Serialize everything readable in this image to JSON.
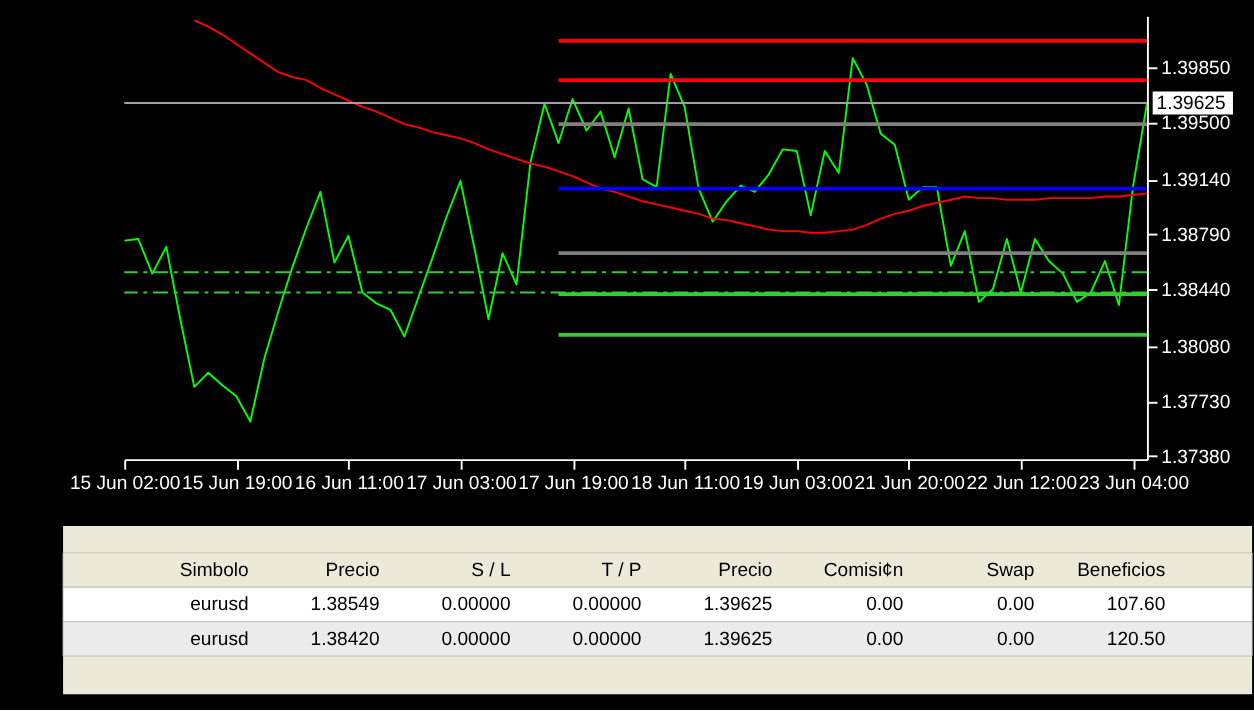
{
  "chart_data": {
    "type": "line",
    "categories": [
      "15 Jun 02:00",
      null,
      null,
      null,
      null,
      null,
      null,
      null,
      "15 Jun 19:00",
      null,
      null,
      null,
      null,
      null,
      null,
      null,
      "16 Jun 11:00",
      null,
      null,
      null,
      null,
      null,
      null,
      null,
      "17 Jun 03:00",
      null,
      null,
      null,
      null,
      null,
      null,
      null,
      "17 Jun 19:00",
      null,
      null,
      null,
      null,
      null,
      null,
      null,
      "18 Jun 11:00",
      null,
      null,
      null,
      null,
      null,
      null,
      null,
      "19 Jun 03:00",
      null,
      null,
      null,
      null,
      null,
      null,
      null,
      "21 Jun 20:00",
      null,
      null,
      null,
      null,
      null,
      null,
      null,
      "22 Jun 12:00",
      null,
      null,
      null,
      null,
      null,
      null,
      null,
      "23 Jun 04:00",
      null
    ],
    "ylim": [
      1.3736,
      1.4018
    ],
    "yticks": [
      {
        "value": 1.3738,
        "label": "1.37380"
      },
      {
        "value": 1.3773,
        "label": "1.37730"
      },
      {
        "value": 1.3808,
        "label": "1.38080"
      },
      {
        "value": 1.3844,
        "label": "1.38440"
      },
      {
        "value": 1.3879,
        "label": "1.38790"
      },
      {
        "value": 1.3914,
        "label": "1.39140"
      },
      {
        "value": 1.395,
        "label": "1.39500"
      },
      {
        "value": 1.3985,
        "label": "1.39850"
      }
    ],
    "grid": false,
    "series": [
      {
        "color": "#00ff00",
        "values": [
          1.3875,
          1.3876,
          1.3854,
          1.3871,
          1.3825,
          1.3782,
          1.3791,
          1.3783,
          1.3776,
          1.376,
          1.38,
          1.383,
          1.3858,
          1.3883,
          1.3906,
          1.3861,
          1.3878,
          1.3842,
          1.3835,
          1.3831,
          1.3814,
          1.3839,
          1.3864,
          1.389,
          1.3913,
          1.387,
          1.3825,
          1.3867,
          1.3847,
          1.3925,
          1.3962,
          1.3937,
          1.3965,
          1.3945,
          1.3957,
          1.3928,
          1.3959,
          1.3914,
          1.3909,
          1.3981,
          1.396,
          1.3908,
          1.3887,
          1.39,
          1.391,
          1.3906,
          1.3917,
          1.3933,
          1.3932,
          1.3891,
          1.3932,
          1.3918,
          1.3991,
          1.3974,
          1.3943,
          1.3936,
          1.3901,
          1.3909,
          1.3909,
          1.3859,
          1.3881,
          1.3836,
          1.3844,
          1.3876,
          1.3842,
          1.3876,
          1.3862,
          1.3854,
          1.3836,
          1.3842,
          1.3862,
          1.3834,
          1.3909,
          1.3962
        ]
      },
      {
        "color": "#ff0000",
        "values": [
          null,
          null,
          null,
          null,
          null,
          1.4015,
          1.4011,
          1.4006,
          1.4,
          1.3994,
          1.3988,
          1.3982,
          1.3979,
          1.3977,
          1.3972,
          1.3968,
          1.3964,
          1.396,
          1.3957,
          1.3953,
          1.3949,
          1.3947,
          1.3944,
          1.3942,
          1.394,
          1.3937,
          1.3933,
          1.393,
          1.3927,
          1.3924,
          1.3922,
          1.3919,
          1.3916,
          1.3912,
          1.3908,
          1.3906,
          1.3903,
          1.39,
          1.3898,
          1.3896,
          1.3894,
          1.3892,
          1.3889,
          1.3888,
          1.3886,
          1.3884,
          1.3882,
          1.3881,
          1.3881,
          1.388,
          1.388,
          1.3881,
          1.3882,
          1.3885,
          1.3889,
          1.3892,
          1.3894,
          1.3897,
          1.3899,
          1.3901,
          1.3903,
          1.3902,
          1.3902,
          1.3901,
          1.3901,
          1.3901,
          1.3902,
          1.3902,
          1.3902,
          1.3902,
          1.3903,
          1.3903,
          1.3904,
          1.3905
        ]
      },
      {
        "color": "#ff0000",
        "values": [
          null,
          null,
          null,
          null,
          null,
          null,
          null,
          null,
          null,
          null,
          null,
          null,
          null,
          null,
          null,
          null,
          null,
          null,
          null,
          null,
          null,
          null,
          null,
          null,
          null,
          null,
          null,
          null,
          null,
          null,
          null,
          1.4002,
          1.4002,
          1.4002,
          1.4002,
          1.4002,
          1.4002,
          1.4002,
          1.4002,
          1.4002,
          1.4002,
          1.4002,
          1.4002,
          1.4002,
          1.4002,
          1.4002,
          1.4002,
          1.4002,
          1.4002,
          1.4002,
          1.4002,
          1.4002,
          1.4002,
          1.4002,
          1.4002,
          1.4002,
          1.4002,
          1.4002,
          1.4002,
          1.4002,
          1.4002,
          1.4002,
          1.4002,
          1.4002,
          1.4002,
          1.4002,
          1.4002,
          1.4002,
          1.4002,
          1.4002,
          1.4002,
          1.4002,
          1.4002,
          1.4002
        ]
      },
      {
        "color": "#ff0000",
        "values": [
          null,
          null,
          null,
          null,
          null,
          null,
          null,
          null,
          null,
          null,
          null,
          null,
          null,
          null,
          null,
          null,
          null,
          null,
          null,
          null,
          null,
          null,
          null,
          null,
          null,
          null,
          null,
          null,
          null,
          null,
          null,
          1.3977,
          1.3977,
          1.3977,
          1.3977,
          1.3977,
          1.3977,
          1.3977,
          1.3977,
          1.3977,
          1.3977,
          1.3977,
          1.3977,
          1.3977,
          1.3977,
          1.3977,
          1.3977,
          1.3977,
          1.3977,
          1.3977,
          1.3977,
          1.3977,
          1.3977,
          1.3977,
          1.3977,
          1.3977,
          1.3977,
          1.3977,
          1.3977,
          1.3977,
          1.3977,
          1.3977,
          1.3977,
          1.3977,
          1.3977,
          1.3977,
          1.3977,
          1.3977,
          1.3977,
          1.3977,
          1.3977,
          1.3977,
          1.3977,
          1.3977
        ]
      },
      {
        "color": "#808080",
        "values": [
          null,
          null,
          null,
          null,
          null,
          null,
          null,
          null,
          null,
          null,
          null,
          null,
          null,
          null,
          null,
          null,
          null,
          null,
          null,
          null,
          null,
          null,
          null,
          null,
          null,
          null,
          null,
          null,
          null,
          null,
          null,
          1.3949,
          1.3949,
          1.3949,
          1.3949,
          1.3949,
          1.3949,
          1.3949,
          1.3949,
          1.3949,
          1.3949,
          1.3949,
          1.3949,
          1.3949,
          1.3949,
          1.3949,
          1.3949,
          1.3949,
          1.3949,
          1.3949,
          1.3949,
          1.3949,
          1.3949,
          1.3949,
          1.3949,
          1.3949,
          1.3949,
          1.3949,
          1.3949,
          1.3949,
          1.3949,
          1.3949,
          1.3949,
          1.3949,
          1.3949,
          1.3949,
          1.3949,
          1.3949,
          1.3949,
          1.3949,
          1.3949,
          1.3949,
          1.3949,
          1.3949
        ]
      },
      {
        "color": "#0000ff",
        "values": [
          null,
          null,
          null,
          null,
          null,
          null,
          null,
          null,
          null,
          null,
          null,
          null,
          null,
          null,
          null,
          null,
          null,
          null,
          null,
          null,
          null,
          null,
          null,
          null,
          null,
          null,
          null,
          null,
          null,
          null,
          null,
          1.3908,
          1.3908,
          1.3908,
          1.3908,
          1.3908,
          1.3908,
          1.3908,
          1.3908,
          1.3908,
          1.3908,
          1.3908,
          1.3908,
          1.3908,
          1.3908,
          1.3908,
          1.3908,
          1.3908,
          1.3908,
          1.3908,
          1.3908,
          1.3908,
          1.3908,
          1.3908,
          1.3908,
          1.3908,
          1.3908,
          1.3908,
          1.3908,
          1.3908,
          1.3908,
          1.3908,
          1.3908,
          1.3908,
          1.3908,
          1.3908,
          1.3908,
          1.3908,
          1.3908,
          1.3908,
          1.3908,
          1.3908,
          1.3908,
          1.3908
        ]
      },
      {
        "color": "#808080",
        "values": [
          null,
          null,
          null,
          null,
          null,
          null,
          null,
          null,
          null,
          null,
          null,
          null,
          null,
          null,
          null,
          null,
          null,
          null,
          null,
          null,
          null,
          null,
          null,
          null,
          null,
          null,
          null,
          null,
          null,
          null,
          null,
          1.3867,
          1.3867,
          1.3867,
          1.3867,
          1.3867,
          1.3867,
          1.3867,
          1.3867,
          1.3867,
          1.3867,
          1.3867,
          1.3867,
          1.3867,
          1.3867,
          1.3867,
          1.3867,
          1.3867,
          1.3867,
          1.3867,
          1.3867,
          1.3867,
          1.3867,
          1.3867,
          1.3867,
          1.3867,
          1.3867,
          1.3867,
          1.3867,
          1.3867,
          1.3867,
          1.3867,
          1.3867,
          1.3867,
          1.3867,
          1.3867,
          1.3867,
          1.3867,
          1.3867,
          1.3867,
          1.3867,
          1.3867,
          1.3867,
          1.3867
        ]
      },
      {
        "color": "#32cd32",
        "values": [
          null,
          null,
          null,
          null,
          null,
          null,
          null,
          null,
          null,
          null,
          null,
          null,
          null,
          null,
          null,
          null,
          null,
          null,
          null,
          null,
          null,
          null,
          null,
          null,
          null,
          null,
          null,
          null,
          null,
          null,
          null,
          1.3841,
          1.3841,
          1.3841,
          1.3841,
          1.3841,
          1.3841,
          1.3841,
          1.3841,
          1.3841,
          1.3841,
          1.3841,
          1.3841,
          1.3841,
          1.3841,
          1.3841,
          1.3841,
          1.3841,
          1.3841,
          1.3841,
          1.3841,
          1.3841,
          1.3841,
          1.3841,
          1.3841,
          1.3841,
          1.3841,
          1.3841,
          1.3841,
          1.3841,
          1.3841,
          1.3841,
          1.3841,
          1.3841,
          1.3841,
          1.3841,
          1.3841,
          1.3841,
          1.3841,
          1.3841,
          1.3841,
          1.3841,
          1.3841,
          1.3841
        ]
      },
      {
        "color": "#32cd32",
        "values": [
          null,
          null,
          null,
          null,
          null,
          null,
          null,
          null,
          null,
          null,
          null,
          null,
          null,
          null,
          null,
          null,
          null,
          null,
          null,
          null,
          null,
          null,
          null,
          null,
          null,
          null,
          null,
          null,
          null,
          null,
          null,
          1.3815,
          1.3815,
          1.3815,
          1.3815,
          1.3815,
          1.3815,
          1.3815,
          1.3815,
          1.3815,
          1.3815,
          1.3815,
          1.3815,
          1.3815,
          1.3815,
          1.3815,
          1.3815,
          1.3815,
          1.3815,
          1.3815,
          1.3815,
          1.3815,
          1.3815,
          1.3815,
          1.3815,
          1.3815,
          1.3815,
          1.3815,
          1.3815,
          1.3815,
          1.3815,
          1.3815,
          1.3815,
          1.3815,
          1.3815,
          1.3815,
          1.3815,
          1.3815,
          1.3815,
          1.3815,
          1.3815,
          1.3815,
          1.3815,
          1.3815
        ]
      }
    ],
    "ref_lines": [
      {
        "axis": "y",
        "value": 1.39625,
        "label": "1.39625",
        "color": "#a0a0a4",
        "line_style": "solid"
      },
      {
        "axis": "y",
        "value": 1.38549,
        "color": "#32cd32",
        "line_style": "dashed"
      },
      {
        "axis": "y",
        "value": 1.3842,
        "color": "#32cd32",
        "line_style": "dashed"
      }
    ],
    "annotations": [
      "Simbolo",
      "Precio",
      "S / L",
      "T / P",
      "Precio",
      "Comisi¢n",
      "Swap",
      "Beneficios",
      "eurusd",
      "1.38549",
      "0.00000",
      "0.00000",
      "1.39625",
      "0.00",
      "0.00",
      "107.60",
      "eurusd",
      "1.38420",
      "0.00000",
      "0.00000",
      "1.39625",
      "0.00",
      "0.00",
      "120.50"
    ]
  }
}
